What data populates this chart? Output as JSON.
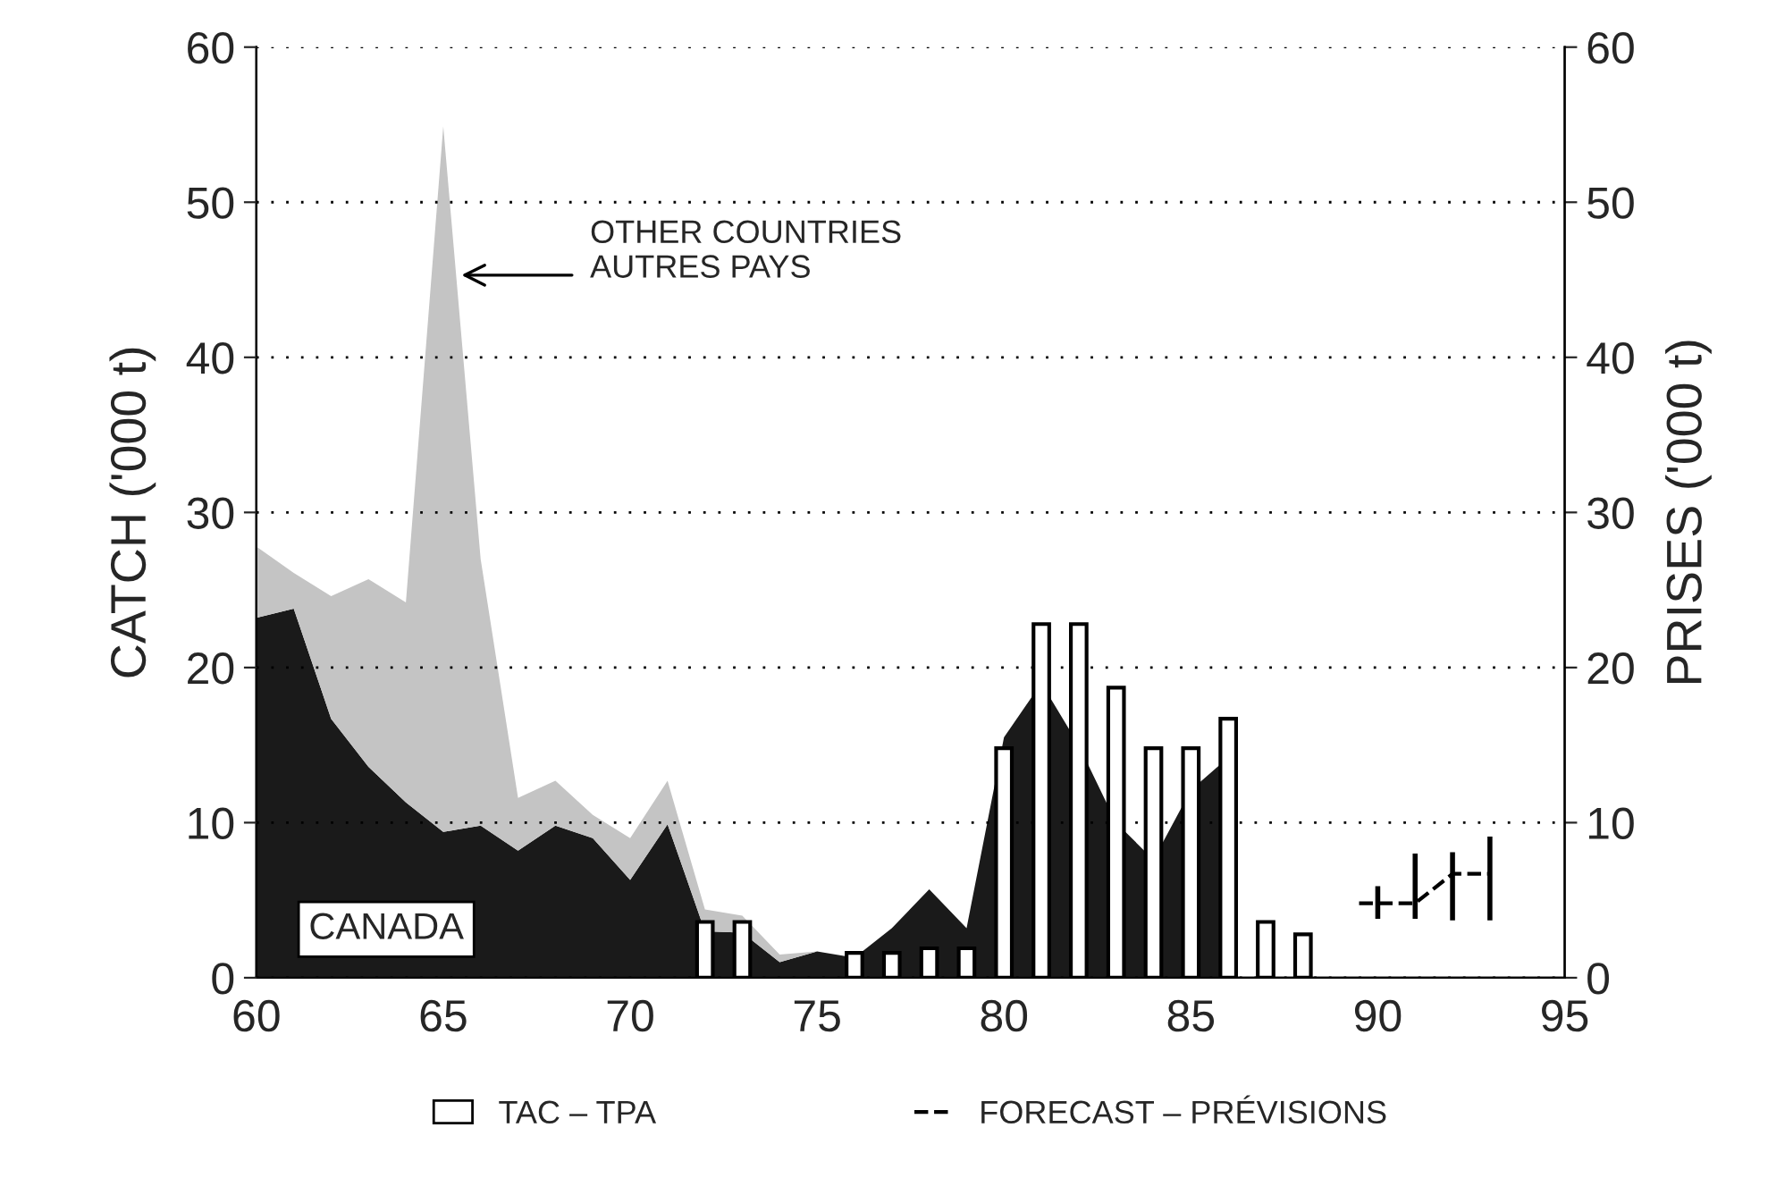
{
  "chart_data": {
    "type": "area",
    "stacked": true,
    "xlabel": null,
    "ylabel": "CATCH ('000 t)",
    "y2label": "PRISES ('000 t)",
    "xlim": [
      60,
      95
    ],
    "xticks": [
      60,
      65,
      70,
      75,
      80,
      85,
      90,
      95
    ],
    "ylim": [
      0,
      60
    ],
    "yticks": [
      0,
      10,
      20,
      30,
      40,
      50,
      60
    ],
    "y2lim": [
      0,
      60
    ],
    "y2ticks": [
      0,
      10,
      20,
      30,
      40,
      50,
      60
    ],
    "grid": "y",
    "legend": "bottom",
    "annotations": [
      "OTHER COUNTRIES\nAUTRES PAYS"
    ],
    "series": [
      {
        "name": "CANADA",
        "color": "#1a1a1a",
        "x": [
          60,
          61,
          62,
          63,
          64,
          65,
          66,
          67,
          68,
          69,
          70,
          71,
          72,
          73,
          74,
          75,
          76,
          77,
          78,
          79,
          80,
          81,
          82,
          83,
          84,
          85,
          86
        ],
        "values": [
          23.2,
          23.8,
          16.7,
          13.6,
          11.3,
          9.4,
          9.8,
          8.2,
          9.8,
          9.0,
          6.3,
          9.9,
          3.0,
          2.9,
          1.0,
          1.7,
          1.3,
          3.2,
          5.7,
          3.2,
          15.5,
          19.0,
          15.0,
          10.0,
          7.6,
          12.1,
          14.2
        ]
      },
      {
        "color": "#c4c4c4",
        "x": [
          60,
          61,
          62,
          63,
          64,
          65,
          66,
          67,
          68,
          69,
          70,
          71,
          72,
          73,
          74,
          75
        ],
        "values": [
          4.6,
          2.3,
          7.9,
          12.1,
          12.9,
          45.5,
          17.2,
          3.4,
          2.9,
          1.5,
          2.7,
          2.8,
          1.4,
          1.1,
          0.5,
          0
        ]
      },
      {
        "type": "bar",
        "name": "TAC – TPA",
        "color": "#ffffff",
        "x": [
          72,
          73,
          76,
          77,
          78,
          79,
          80,
          81,
          82,
          83,
          84,
          85,
          86,
          87,
          88
        ],
        "values": [
          3.6,
          3.6,
          1.6,
          1.6,
          1.9,
          1.9,
          14.8,
          22.8,
          22.8,
          18.7,
          14.8,
          14.8,
          16.7,
          3.6,
          2.8
        ]
      },
      {
        "type": "line",
        "name": "FORECAST – PRÉVISIONS",
        "color": "#000000",
        "line_style": "dashed",
        "marker": "none",
        "x": [
          89.5,
          90,
          91,
          92,
          93
        ],
        "values": [
          4.8,
          4.8,
          4.8,
          6.7,
          6.7
        ],
        "errors": [
          null,
          [
            3.8,
            5.9
          ],
          [
            3.8,
            8.0
          ],
          [
            3.7,
            8.1
          ],
          [
            3.7,
            9.1
          ]
        ]
      }
    ]
  }
}
